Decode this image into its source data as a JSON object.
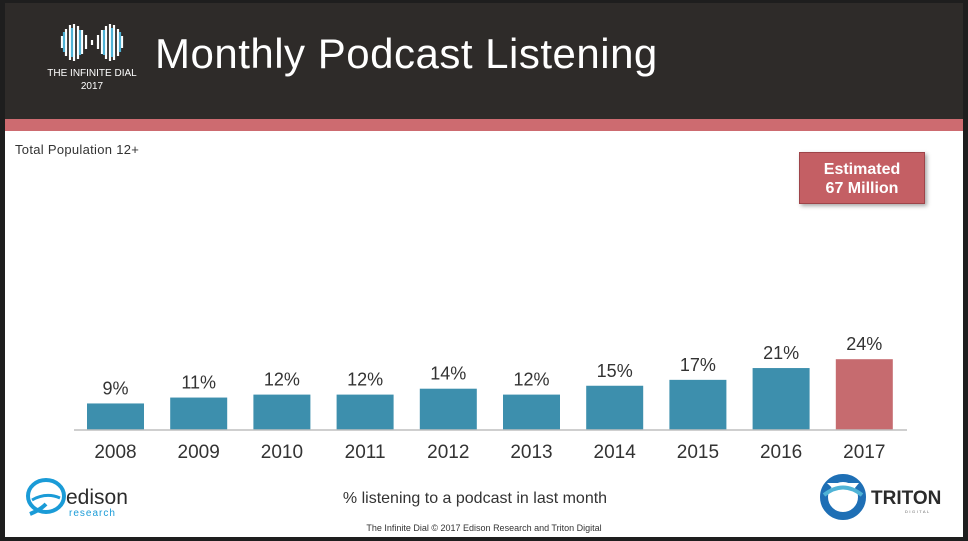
{
  "header": {
    "logo_name": "THE INFINITE DIAL",
    "logo_year": "2017",
    "title": "Monthly Podcast Listening"
  },
  "subtitle": "Total Population 12+",
  "badge": {
    "line1": "Estimated",
    "line2": "67 Million"
  },
  "caption": "% listening to a podcast in last month",
  "footer": "The Infinite Dial  © 2017 Edison Research and Triton Digital",
  "logos": {
    "edison": {
      "name": "edison",
      "tagline": "research"
    },
    "triton": {
      "name": "TRITON",
      "tagline": "DIGITAL"
    }
  },
  "colors": {
    "bar": "#3d8fad",
    "highlight": "#c66b6f",
    "header": "#2e2b29",
    "accent": "#cd6b70"
  },
  "chart_data": {
    "type": "bar",
    "categories": [
      "2008",
      "2009",
      "2010",
      "2011",
      "2012",
      "2013",
      "2014",
      "2015",
      "2016",
      "2017"
    ],
    "values": [
      9,
      11,
      12,
      12,
      14,
      12,
      15,
      17,
      21,
      24
    ],
    "data_labels": [
      "9%",
      "11%",
      "12%",
      "12%",
      "14%",
      "12%",
      "15%",
      "17%",
      "21%",
      "24%"
    ],
    "highlight_category": "2017",
    "ylim": [
      0,
      100
    ],
    "grid": false,
    "legend": "none",
    "annotation": "Estimated 67 Million"
  }
}
